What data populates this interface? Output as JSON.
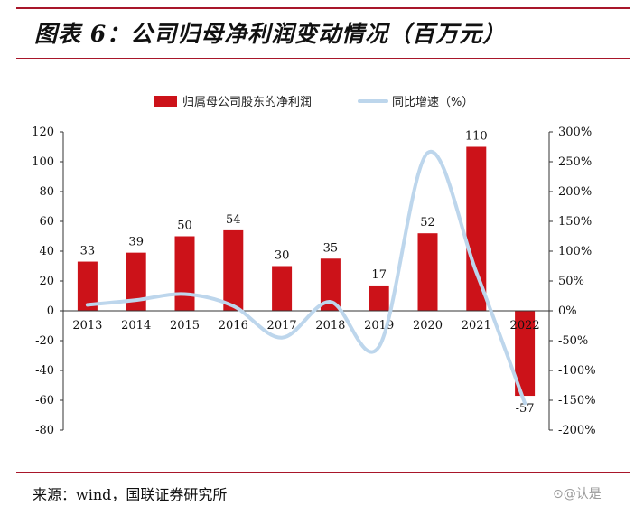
{
  "title": "图表 6：公司归母净利润变动情况（百万元）",
  "source": "来源：wind，国联证券研究所",
  "watermark": "⊙@认是",
  "colors": {
    "bar": "#cc1219",
    "line": "#bdd6ec",
    "accent": "#a8162a"
  },
  "chart_data": {
    "type": "bar",
    "categories": [
      "2013",
      "2014",
      "2015",
      "2016",
      "2017",
      "2018",
      "2019",
      "2020",
      "2021",
      "2022"
    ],
    "series": [
      {
        "name": "归属母公司股东的净利润",
        "type": "bar",
        "axis": "left",
        "values": [
          33,
          39,
          50,
          54,
          30,
          35,
          17,
          52,
          110,
          -57
        ],
        "data_labels": [
          "33",
          "39",
          "50",
          "54",
          "30",
          "35",
          "17",
          "52",
          "110",
          "-57"
        ]
      },
      {
        "name": "同比增速（%）",
        "type": "line",
        "axis": "right",
        "values": [
          10,
          18,
          28,
          8,
          -45,
          15,
          -60,
          265,
          65,
          -155
        ]
      }
    ],
    "y_left": {
      "lim": [
        -80,
        120
      ],
      "ticks": [
        "120",
        "100",
        "80",
        "60",
        "40",
        "20",
        "0",
        "-20",
        "-40",
        "-60",
        "-80"
      ]
    },
    "y_right": {
      "lim": [
        -200,
        300
      ],
      "ticks": [
        "300%",
        "250%",
        "200%",
        "150%",
        "100%",
        "50%",
        "0%",
        "-50%",
        "-100%",
        "-150%",
        "-200%"
      ]
    },
    "legend_position": "top",
    "grid": false
  }
}
